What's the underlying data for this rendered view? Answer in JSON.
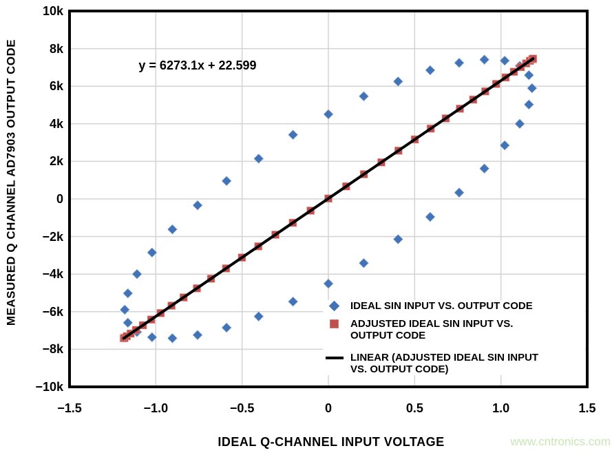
{
  "watermark": {
    "text": "www.cntronics.com",
    "color": "#c7e7b5"
  },
  "legend": {
    "items": [
      {
        "marker": "diamond",
        "color": "#4273b6",
        "lines": [
          "IDEAL SIN INPUT VS. OUTPUT CODE"
        ]
      },
      {
        "marker": "square",
        "color": "#c0504d",
        "lines": [
          "ADJUSTED IDEAL SIN INPUT VS.",
          "OUTPUT CODE"
        ]
      },
      {
        "marker": "line",
        "color": "#000000",
        "lines": [
          "LINEAR (ADJUSTED IDEAL SIN INPUT",
          "VS. OUTPUT CODE)"
        ]
      }
    ]
  },
  "chart_data": {
    "type": "scatter",
    "title": "",
    "equation_label": "y = 6273.1x + 22.599",
    "xlabel": "IDEAL Q-CHANNEL INPUT VOLTAGE",
    "ylabel": "MEASURED Q CHANNEL AD7903 OUTPUT CODE",
    "xlim": [
      -1.5,
      1.5
    ],
    "ylim": [
      -10000,
      10000
    ],
    "grid": true,
    "grid_color": "#d3d3d3",
    "axis_color": "#000000",
    "legend_position": "inside-bottom-right",
    "x_ticks": [
      {
        "v": -1.5,
        "label": "−1.5"
      },
      {
        "v": -1.0,
        "label": "−1.0"
      },
      {
        "v": -0.5,
        "label": "−0.5"
      },
      {
        "v": 0,
        "label": "0"
      },
      {
        "v": 0.5,
        "label": "0.5"
      },
      {
        "v": 1.0,
        "label": "1.0"
      },
      {
        "v": 1.5,
        "label": "1.5"
      }
    ],
    "y_ticks": [
      {
        "v": 10000,
        "label": "10k"
      },
      {
        "v": 8000,
        "label": "8k"
      },
      {
        "v": 6000,
        "label": "6k"
      },
      {
        "v": 4000,
        "label": "4k"
      },
      {
        "v": 2000,
        "label": "2k"
      },
      {
        "v": 0,
        "label": "0"
      },
      {
        "v": -2000,
        "label": "−2k"
      },
      {
        "v": -4000,
        "label": "−4k"
      },
      {
        "v": -6000,
        "label": "−6k"
      },
      {
        "v": -8000,
        "label": "−8k"
      },
      {
        "v": -10000,
        "label": "−10k"
      }
    ],
    "series": [
      {
        "name": "IDEAL SIN INPUT VS. OUTPUT CODE",
        "marker": "diamond",
        "color": "#4273b6",
        "edge_color": "#86a7d3",
        "points": [
          [
            0.0,
            4507
          ],
          [
            0.205,
            5462
          ],
          [
            0.404,
            6251
          ],
          [
            0.59,
            6850
          ],
          [
            0.758,
            7241
          ],
          [
            0.904,
            7412
          ],
          [
            1.022,
            7358
          ],
          [
            1.109,
            7081
          ],
          [
            1.162,
            6587
          ],
          [
            1.18,
            5894
          ],
          [
            1.162,
            5023
          ],
          [
            1.109,
            3998
          ],
          [
            1.022,
            2852
          ],
          [
            0.904,
            1618
          ],
          [
            0.758,
            337
          ],
          [
            0.59,
            -956
          ],
          [
            0.404,
            -2144
          ],
          [
            0.205,
            -3415
          ],
          [
            0.0,
            -4507
          ],
          [
            -0.205,
            -5462
          ],
          [
            -0.404,
            -6251
          ],
          [
            -0.59,
            -6850
          ],
          [
            -0.758,
            -7241
          ],
          [
            -0.904,
            -7412
          ],
          [
            -1.022,
            -7358
          ],
          [
            -1.109,
            -7081
          ],
          [
            -1.162,
            -6587
          ],
          [
            -1.18,
            -5894
          ],
          [
            -1.162,
            -5023
          ],
          [
            -1.109,
            -3998
          ],
          [
            -1.022,
            -2852
          ],
          [
            -0.904,
            -1618
          ],
          [
            -0.758,
            -337
          ],
          [
            -0.59,
            956
          ],
          [
            -0.404,
            2144
          ],
          [
            -0.205,
            3415
          ]
        ]
      },
      {
        "name": "ADJUSTED IDEAL SIN INPUT VS. OUTPUT CODE",
        "marker": "square",
        "color": "#c0504d",
        "edge_color": "#e3aaa2",
        "points": [
          [
            -1.186,
            -7417
          ],
          [
            -1.182,
            -7392
          ],
          [
            -1.168,
            -7304
          ],
          [
            -1.146,
            -7166
          ],
          [
            -1.115,
            -6972
          ],
          [
            -1.075,
            -6721
          ],
          [
            -1.027,
            -6420
          ],
          [
            -0.972,
            -6075
          ],
          [
            -0.909,
            -5680
          ],
          [
            -0.839,
            -5241
          ],
          [
            -0.762,
            -4758
          ],
          [
            -0.68,
            -4243
          ],
          [
            -0.593,
            -3697
          ],
          [
            -0.501,
            -3120
          ],
          [
            -0.406,
            -2524
          ],
          [
            -0.307,
            -1903
          ],
          [
            -0.206,
            -1270
          ],
          [
            -0.103,
            -624
          ],
          [
            0.0,
            23
          ],
          [
            0.103,
            669
          ],
          [
            0.206,
            1315
          ],
          [
            0.307,
            1948
          ],
          [
            0.406,
            2569
          ],
          [
            0.501,
            3165
          ],
          [
            0.593,
            3743
          ],
          [
            0.68,
            4288
          ],
          [
            0.762,
            4803
          ],
          [
            0.839,
            5286
          ],
          [
            0.909,
            5725
          ],
          [
            0.972,
            6120
          ],
          [
            1.027,
            6465
          ],
          [
            1.075,
            6766
          ],
          [
            1.115,
            7017
          ],
          [
            1.146,
            7212
          ],
          [
            1.168,
            7350
          ],
          [
            1.182,
            7437
          ],
          [
            1.186,
            7462
          ]
        ]
      },
      {
        "name": "LINEAR (ADJUSTED IDEAL SIN INPUT VS. OUTPUT CODE)",
        "marker": "line",
        "color": "#000000",
        "points": [
          [
            -1.186,
            -7417
          ],
          [
            1.186,
            7462
          ]
        ]
      }
    ]
  }
}
